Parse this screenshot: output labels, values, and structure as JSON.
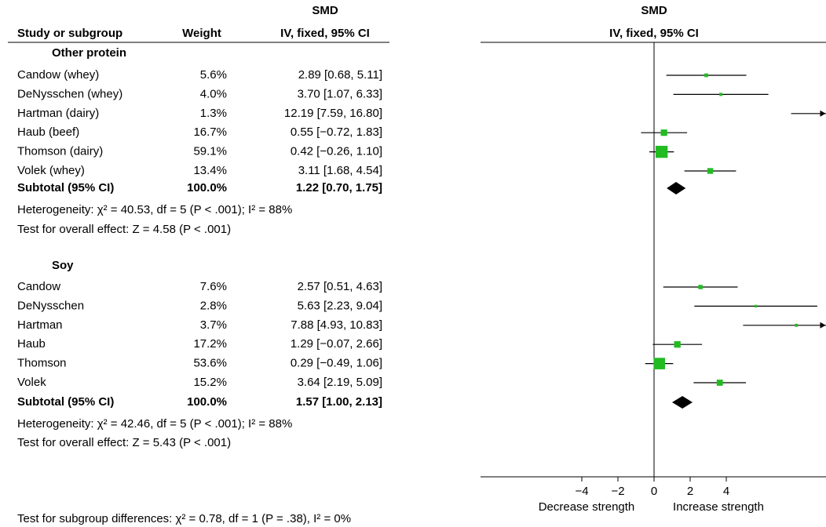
{
  "chart_data": {
    "type": "forest",
    "header": {
      "effect": "SMD",
      "study": "Study or subgroup",
      "weight": "Weight",
      "method": "IV, fixed, 95% CI"
    },
    "groups": [
      {
        "name": "Other protein",
        "studies": [
          {
            "name": "Candow (whey)",
            "weight": 5.6,
            "weight_label": "5.6%",
            "smd": 2.89,
            "ci_low": 0.68,
            "ci_high": 5.11,
            "estimate_label": "2.89 [0.68, 5.11]"
          },
          {
            "name": "DeNysschen (whey)",
            "weight": 4.0,
            "weight_label": "4.0%",
            "smd": 3.7,
            "ci_low": 1.07,
            "ci_high": 6.33,
            "estimate_label": "3.70 [1.07, 6.33]"
          },
          {
            "name": "Hartman (dairy)",
            "weight": 1.3,
            "weight_label": "1.3%",
            "smd": 12.19,
            "ci_low": 7.59,
            "ci_high": 16.8,
            "estimate_label": "12.19 [7.59, 16.80]"
          },
          {
            "name": "Haub (beef)",
            "weight": 16.7,
            "weight_label": "16.7%",
            "smd": 0.55,
            "ci_low": -0.72,
            "ci_high": 1.83,
            "estimate_label": "0.55 [−0.72, 1.83]"
          },
          {
            "name": "Thomson (dairy)",
            "weight": 59.1,
            "weight_label": "59.1%",
            "smd": 0.42,
            "ci_low": -0.26,
            "ci_high": 1.1,
            "estimate_label": "0.42 [−0.26, 1.10]"
          },
          {
            "name": "Volek (whey)",
            "weight": 13.4,
            "weight_label": "13.4%",
            "smd": 3.11,
            "ci_low": 1.68,
            "ci_high": 4.54,
            "estimate_label": "3.11 [1.68, 4.54]"
          }
        ],
        "subtotal": {
          "name": "Subtotal (95% CI)",
          "weight": 100.0,
          "weight_label": "100.0%",
          "smd": 1.22,
          "ci_low": 0.7,
          "ci_high": 1.75,
          "estimate_label": "1.22 [0.70, 1.75]"
        },
        "heterogeneity": "Heterogeneity: χ² = 40.53, df = 5 (P < .001); I² = 88%",
        "overall_effect": "Test for overall effect: Z = 4.58 (P < .001)"
      },
      {
        "name": "Soy",
        "studies": [
          {
            "name": "Candow",
            "weight": 7.6,
            "weight_label": "7.6%",
            "smd": 2.57,
            "ci_low": 0.51,
            "ci_high": 4.63,
            "estimate_label": "2.57 [0.51, 4.63]"
          },
          {
            "name": "DeNysschen",
            "weight": 2.8,
            "weight_label": "2.8%",
            "smd": 5.63,
            "ci_low": 2.23,
            "ci_high": 9.04,
            "estimate_label": "5.63 [2.23, 9.04]"
          },
          {
            "name": "Hartman",
            "weight": 3.7,
            "weight_label": "3.7%",
            "smd": 7.88,
            "ci_low": 4.93,
            "ci_high": 10.83,
            "estimate_label": "7.88 [4.93, 10.83]"
          },
          {
            "name": "Haub",
            "weight": 17.2,
            "weight_label": "17.2%",
            "smd": 1.29,
            "ci_low": -0.07,
            "ci_high": 2.66,
            "estimate_label": "1.29 [−0.07, 2.66]"
          },
          {
            "name": "Thomson",
            "weight": 53.6,
            "weight_label": "53.6%",
            "smd": 0.29,
            "ci_low": -0.49,
            "ci_high": 1.06,
            "estimate_label": "0.29 [−0.49, 1.06]"
          },
          {
            "name": "Volek",
            "weight": 15.2,
            "weight_label": "15.2%",
            "smd": 3.64,
            "ci_low": 2.19,
            "ci_high": 5.09,
            "estimate_label": "3.64 [2.19, 5.09]"
          }
        ],
        "subtotal": {
          "name": "Subtotal (95% CI)",
          "weight": 100.0,
          "weight_label": "100.0%",
          "smd": 1.57,
          "ci_low": 1.0,
          "ci_high": 2.13,
          "estimate_label": "1.57 [1.00, 2.13]"
        },
        "heterogeneity": "Heterogeneity: χ² = 42.46, df = 5 (P < .001); I² = 88%",
        "overall_effect": "Test for overall effect: Z = 5.43 (P < .001)"
      }
    ],
    "xlim": [
      -9.5,
      9.5
    ],
    "xticks": [
      {
        "value": -4,
        "label": "−4"
      },
      {
        "value": -2,
        "label": "−2"
      },
      0,
      2,
      4
    ],
    "xlabel_left": "Decrease strength",
    "xlabel_right": "Increase strength",
    "study_color": "#22bb22",
    "footer": "Test for subgroup differences: χ² = 0.78, df = 1 (P = .38), I² = 0%"
  }
}
